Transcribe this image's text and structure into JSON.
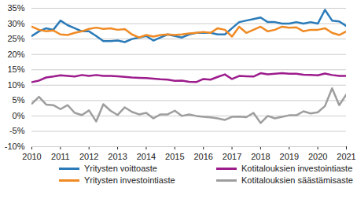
{
  "chart_data": {
    "type": "line",
    "x": [
      2010,
      2010.25,
      2010.5,
      2010.75,
      2011,
      2011.25,
      2011.5,
      2011.75,
      2012,
      2012.25,
      2012.5,
      2012.75,
      2013,
      2013.25,
      2013.5,
      2013.75,
      2014,
      2014.25,
      2014.5,
      2014.75,
      2015,
      2015.25,
      2015.5,
      2015.75,
      2016,
      2016.25,
      2016.5,
      2016.75,
      2017,
      2017.25,
      2017.5,
      2017.75,
      2018,
      2018.25,
      2018.5,
      2018.75,
      2019,
      2019.25,
      2019.5,
      2019.75,
      2020,
      2020.25,
      2020.5,
      2020.75,
      2021
    ],
    "series": [
      {
        "name": "Yritysten voittoaste",
        "color": "#2b7bb9",
        "values": [
          26,
          27.5,
          28.5,
          28,
          31,
          29.5,
          28.5,
          27.5,
          27.5,
          26,
          24.3,
          24.3,
          24.5,
          24,
          25,
          25.5,
          26,
          24.5,
          25.5,
          26.5,
          26,
          25.5,
          26.5,
          27,
          27,
          27,
          26.5,
          26.5,
          28.5,
          30.5,
          31,
          31.5,
          32,
          30.5,
          30.5,
          30,
          30,
          30.5,
          30,
          30.5,
          30,
          34.5,
          31,
          30.7,
          29.2
        ]
      },
      {
        "name": "Yritysten investointiaste",
        "color": "#f08a24",
        "values": [
          29,
          28,
          27.5,
          27.8,
          26.5,
          26.3,
          27,
          27.5,
          28.3,
          28.7,
          28.3,
          28.5,
          28,
          28.2,
          26.5,
          25.5,
          26.3,
          25.8,
          26.3,
          26.5,
          26.3,
          26.5,
          26.8,
          27,
          27.3,
          27,
          28.5,
          28,
          25.8,
          29,
          27,
          28,
          29,
          27.5,
          28,
          29,
          28.7,
          28.8,
          27.5,
          28,
          28,
          28.5,
          27,
          26.3,
          27.5
        ]
      },
      {
        "name": "Kotitalouksien investointiaste",
        "color": "#9c1c8c",
        "values": [
          11,
          11.5,
          12.5,
          12.8,
          13.2,
          13,
          12.8,
          13.3,
          13,
          13.3,
          13,
          13,
          12.9,
          12.7,
          12.5,
          12.4,
          12.3,
          12.1,
          11.9,
          11.8,
          11.4,
          11.5,
          11.1,
          11,
          12,
          11.8,
          12.7,
          13.5,
          12,
          13,
          12.9,
          12.8,
          13.9,
          13.5,
          13.7,
          13.9,
          13.7,
          13.7,
          13.4,
          13.3,
          13.2,
          13.8,
          13.3,
          13,
          13
        ]
      },
      {
        "name": "Kotitalouksien säästämisaste",
        "color": "#9e9e9e",
        "values": [
          4,
          6.2,
          3.7,
          3.5,
          2.2,
          3.5,
          1,
          0.3,
          1.8,
          -1.8,
          3.8,
          1.7,
          0.3,
          2.8,
          1.3,
          0.5,
          1,
          -0.8,
          0.5,
          0.5,
          1.7,
          0,
          0.5,
          0,
          -0.3,
          -0.5,
          -0.8,
          -1.3,
          -0.3,
          -0.2,
          -0.4,
          1,
          -2.3,
          0,
          -0.8,
          -0.3,
          0.2,
          0.2,
          1.5,
          0.8,
          1.2,
          3.2,
          9,
          3.5,
          7
        ]
      }
    ],
    "xlim": [
      2010,
      2021
    ],
    "xticks": [
      2010,
      2011,
      2012,
      2013,
      2014,
      2015,
      2016,
      2017,
      2018,
      2019,
      2020,
      2021
    ],
    "ylim": [
      -10,
      35
    ],
    "yticks": [
      {
        "value": -10,
        "label": "-10%"
      },
      {
        "value": -5,
        "label": "-5%"
      },
      {
        "value": 0,
        "label": "0%"
      },
      {
        "value": 5,
        "label": "5%"
      },
      {
        "value": 10,
        "label": "10%"
      },
      {
        "value": 15,
        "label": "15%"
      },
      {
        "value": 20,
        "label": "20%"
      },
      {
        "value": 25,
        "label": "25%"
      },
      {
        "value": 30,
        "label": "30%"
      },
      {
        "value": 35,
        "label": "35%"
      }
    ],
    "grid": true,
    "legend": "bottom"
  }
}
